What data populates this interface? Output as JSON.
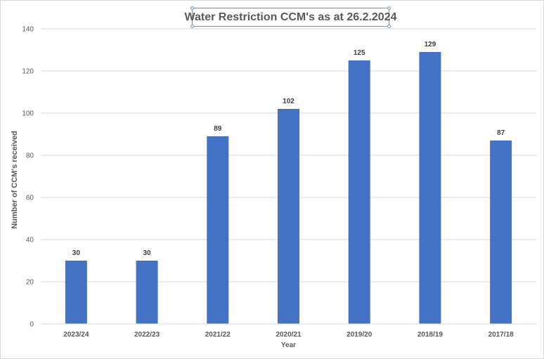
{
  "chart_data": {
    "type": "bar",
    "title": "Water Restriction CCM's as at 26.2.2024",
    "xlabel": "Year",
    "ylabel": "Number of CCM's received",
    "categories": [
      "2023/24",
      "2022/23",
      "2021/22",
      "2020/21",
      "2019/20",
      "2018/19",
      "2017/18"
    ],
    "values": [
      30,
      30,
      89,
      102,
      125,
      129,
      87
    ],
    "ylim": [
      0,
      140
    ],
    "yticks": [
      0,
      20,
      40,
      60,
      80,
      100,
      120,
      140
    ],
    "grid": true,
    "legend": "none",
    "bar_color": "#4472c4"
  }
}
